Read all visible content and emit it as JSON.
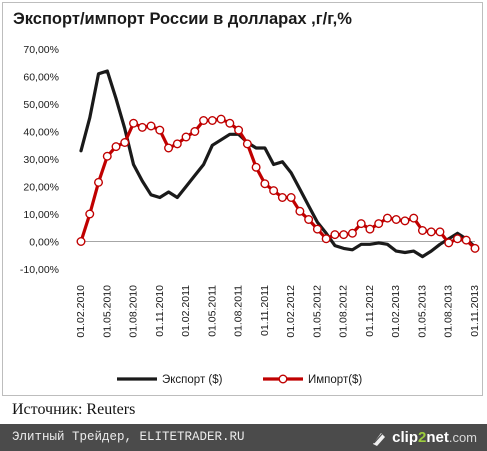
{
  "title": "Экспорт/импорт России в долларах ,г/г,%",
  "source": "Источник: Reuters",
  "footer": {
    "caption": "Элитный Трейдер, ELITETRADER.RU",
    "brand_prefix": "clip",
    "brand_number": "2",
    "brand_name": "net",
    "brand_tld": ".com"
  },
  "colors": {
    "export": "#1a1a1a",
    "import": "#c00000",
    "marker_fill": "#ffffff",
    "footer_bg": "#4b4b4b",
    "brand_accent": "#9ccc3c"
  },
  "chart_data": {
    "type": "line",
    "title": "Экспорт/импорт России в долларах ,г/г,%",
    "xlabel": "",
    "ylabel": "",
    "ylim": [
      -0.1,
      0.7
    ],
    "y_tick_values": [
      -0.1,
      0.0,
      0.1,
      0.2,
      0.3,
      0.4,
      0.5,
      0.6,
      0.7
    ],
    "y_tick_labels": [
      "-10,00%",
      "0,00%",
      "10,00%",
      "20,00%",
      "30,00%",
      "40,00%",
      "50,00%",
      "60,00%",
      "70,00%"
    ],
    "x_tick_labels": [
      "01.02.2010",
      "01.05.2010",
      "01.08.2010",
      "01.11.2010",
      "01.02.2011",
      "01.05.2011",
      "01.08.2011",
      "01.11.2011",
      "01.02.2012",
      "01.05.2012",
      "01.08.2012",
      "01.11.2012",
      "01.02.2013",
      "01.05.2013",
      "01.08.2013",
      "01.11.2013"
    ],
    "x": [
      "02.2010",
      "03.2010",
      "04.2010",
      "05.2010",
      "06.2010",
      "07.2010",
      "08.2010",
      "09.2010",
      "10.2010",
      "11.2010",
      "12.2010",
      "01.2011",
      "02.2011",
      "03.2011",
      "04.2011",
      "05.2011",
      "06.2011",
      "07.2011",
      "08.2011",
      "09.2011",
      "10.2011",
      "11.2011",
      "12.2011",
      "01.2012",
      "02.2012",
      "03.2012",
      "04.2012",
      "05.2012",
      "06.2012",
      "07.2012",
      "08.2012",
      "09.2012",
      "10.2012",
      "11.2012",
      "12.2012",
      "01.2013",
      "02.2013",
      "03.2013",
      "04.2013",
      "05.2013",
      "06.2013",
      "07.2013",
      "08.2013",
      "09.2013",
      "10.2013",
      "11.2013"
    ],
    "grid": false,
    "legend_position": "bottom",
    "series": [
      {
        "name": "Экспорт ($)",
        "color": "#1a1a1a",
        "marker": "none",
        "values": [
          0.33,
          0.45,
          0.61,
          0.62,
          0.52,
          0.41,
          0.28,
          0.22,
          0.17,
          0.16,
          0.18,
          0.16,
          0.2,
          0.24,
          0.28,
          0.35,
          0.37,
          0.39,
          0.39,
          0.36,
          0.34,
          0.34,
          0.28,
          0.29,
          0.25,
          0.19,
          0.13,
          0.07,
          0.03,
          -0.015,
          -0.025,
          -0.03,
          -0.01,
          -0.01,
          -0.005,
          -0.01,
          -0.035,
          -0.04,
          -0.035,
          -0.055,
          -0.035,
          -0.01,
          0.01,
          0.03,
          0.01,
          -0.02
        ]
      },
      {
        "name": "Импорт($)",
        "color": "#c00000",
        "marker": "circle",
        "values": [
          0.0,
          0.1,
          0.215,
          0.31,
          0.345,
          0.36,
          0.43,
          0.415,
          0.42,
          0.405,
          0.34,
          0.355,
          0.38,
          0.4,
          0.44,
          0.44,
          0.445,
          0.43,
          0.405,
          0.355,
          0.27,
          0.21,
          0.185,
          0.16,
          0.16,
          0.11,
          0.08,
          0.045,
          0.01,
          0.025,
          0.025,
          0.03,
          0.065,
          0.045,
          0.065,
          0.085,
          0.08,
          0.075,
          0.085,
          0.04,
          0.035,
          0.035,
          -0.005,
          0.01,
          0.005,
          -0.025
        ]
      }
    ]
  }
}
